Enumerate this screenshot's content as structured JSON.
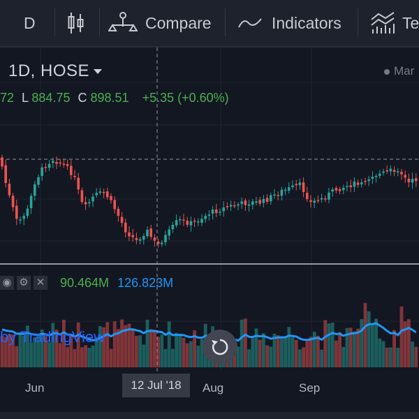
{
  "toolbar": {
    "interval_label": "D",
    "compare_label": "Compare",
    "indicators_label": "Indicators",
    "templates_label": "Te"
  },
  "legend": {
    "symbol": "1D, HOSE",
    "market_status": "Mar",
    "open_fragment": "72",
    "low_label": "L",
    "low_value": "884.75",
    "close_label": "C",
    "close_value": "898.51",
    "change": "+5.35 (+0.60%)"
  },
  "volume_legend": {
    "value1": "90.464M",
    "value2": "126.823M"
  },
  "watermark": "by TradingView",
  "time_axis": {
    "ticks": [
      "Jun",
      "Aug",
      "Sep"
    ],
    "crosshair_label": "12 Jul '18"
  },
  "colors": {
    "background": "#131722",
    "up": "#26a69a",
    "down": "#ef5350",
    "volume_ma": "#2196f3",
    "watermark": "#2962ff"
  },
  "icons": [
    "candles-icon",
    "compare-icon",
    "indicators-icon",
    "templates-icon",
    "eye-icon",
    "settings-icon",
    "close-icon",
    "reset-icon"
  ]
}
